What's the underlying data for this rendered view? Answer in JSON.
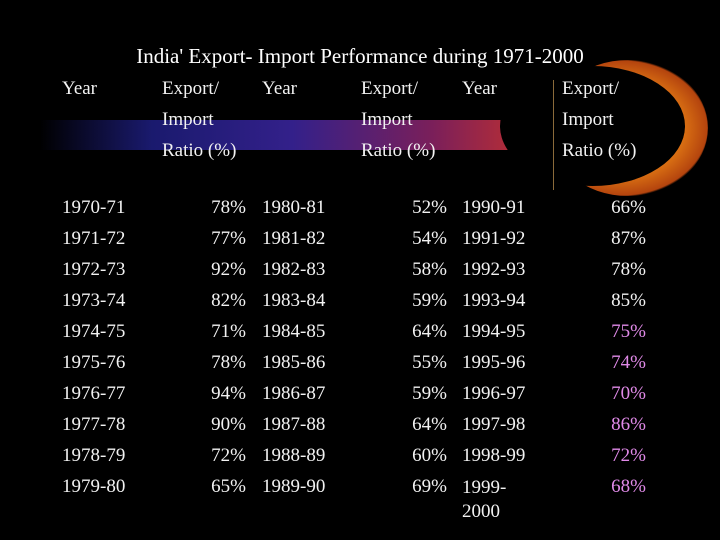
{
  "title": "India' Export- Import Performance during 1971-2000",
  "headers": {
    "year": "Year",
    "ratio_lines": [
      "Export/",
      "Import",
      "Ratio (%)"
    ]
  },
  "colors": {
    "background": "#000000",
    "text": "#f2f2f2",
    "highlight": "#e08ae8"
  },
  "columns": [
    {
      "rows": [
        {
          "year": "1970-71",
          "ratio": "78%"
        },
        {
          "year": "1971-72",
          "ratio": "77%"
        },
        {
          "year": "1972-73",
          "ratio": "92%"
        },
        {
          "year": "1973-74",
          "ratio": "82%"
        },
        {
          "year": "1974-75",
          "ratio": "71%"
        },
        {
          "year": "1975-76",
          "ratio": "78%"
        },
        {
          "year": "1976-77",
          "ratio": "94%"
        },
        {
          "year": "1977-78",
          "ratio": "90%"
        },
        {
          "year": "1978-79",
          "ratio": "72%"
        },
        {
          "year": "1979-80",
          "ratio": "65%"
        }
      ]
    },
    {
      "rows": [
        {
          "year": "1980-81",
          "ratio": "52%"
        },
        {
          "year": "1981-82",
          "ratio": "54%"
        },
        {
          "year": "1982-83",
          "ratio": "58%"
        },
        {
          "year": "1983-84",
          "ratio": "59%"
        },
        {
          "year": "1984-85",
          "ratio": "64%"
        },
        {
          "year": "1985-86",
          "ratio": "55%"
        },
        {
          "year": "1986-87",
          "ratio": "59%"
        },
        {
          "year": "1987-88",
          "ratio": "64%"
        },
        {
          "year": "1988-89",
          "ratio": "60%"
        },
        {
          "year": "1989-90",
          "ratio": "69%"
        }
      ]
    },
    {
      "rows": [
        {
          "year": "1990-91",
          "ratio": "66%",
          "highlight": false
        },
        {
          "year": "1991-92",
          "ratio": "87%",
          "highlight": false
        },
        {
          "year": "1992-93",
          "ratio": "78%",
          "highlight": false
        },
        {
          "year": "1993-94",
          "ratio": "85%",
          "highlight": false
        },
        {
          "year": "1994-95",
          "ratio": "75%",
          "highlight": true
        },
        {
          "year": "1995-96",
          "ratio": "74%",
          "highlight": true
        },
        {
          "year": "1996-97",
          "ratio": "70%",
          "highlight": true
        },
        {
          "year": "1997-98",
          "ratio": "86%",
          "highlight": true
        },
        {
          "year": "1998-99",
          "ratio": "72%",
          "highlight": true
        },
        {
          "year": "1999-2000",
          "year_lines": [
            "1999-",
            "2000"
          ],
          "ratio": "68%",
          "highlight": true
        }
      ]
    }
  ]
}
